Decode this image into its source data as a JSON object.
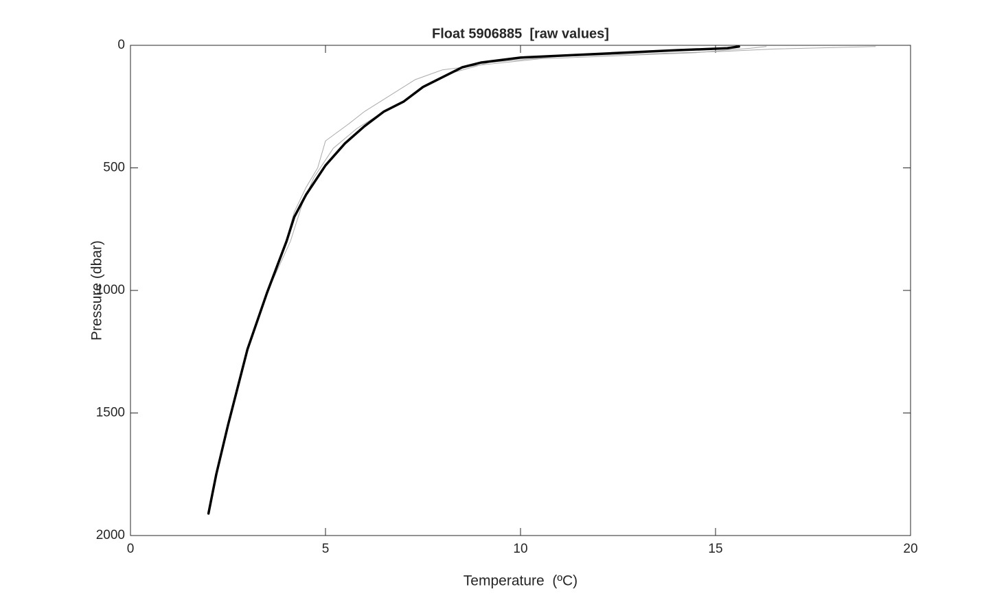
{
  "chart_data": {
    "type": "line",
    "title": "Float 5906885  [raw values]",
    "x_label": "Temperature  (ºC)",
    "y_label": "Pressure (dbar)",
    "xlim": [
      0,
      20
    ],
    "xticks": [
      0,
      5,
      10,
      15,
      20
    ],
    "ylim": [
      0,
      2000
    ],
    "yticks": [
      0,
      500,
      1000,
      1500,
      2000
    ],
    "y_inverted": true,
    "series": [
      {
        "color": "#aaaaaa",
        "width": 1,
        "x": [
          19.1,
          16.5,
          15.2,
          11,
          9.2,
          8.3,
          7.6,
          7.0,
          6.4,
          5.8,
          5.2,
          4.7,
          4.4,
          4.1,
          3.5,
          3.0,
          2.5,
          2.2,
          2.0
        ],
        "values": [
          5,
          15,
          25,
          45,
          70,
          110,
          160,
          230,
          280,
          340,
          420,
          540,
          650,
          800,
          1010,
          1250,
          1560,
          1750,
          1905
        ]
      },
      {
        "color": "#aaaaaa",
        "width": 1,
        "x": [
          16.3,
          15.9,
          14.5,
          10.5,
          9.0,
          8.0,
          7.3,
          6.0,
          5.6,
          5.0,
          4.8,
          4.5,
          4.2,
          4.0,
          3.5,
          3.0,
          2.5,
          2.2,
          2.0
        ],
        "values": [
          5,
          12,
          30,
          55,
          80,
          100,
          140,
          270,
          320,
          390,
          500,
          580,
          680,
          790,
          1000,
          1245,
          1550,
          1748,
          1908
        ]
      },
      {
        "color": "#000000",
        "width": 3.5,
        "x": [
          15.6,
          15.3,
          14,
          10,
          9,
          8.5,
          8,
          7.5,
          7,
          6.5,
          6,
          5.5,
          5,
          4.5,
          4.2,
          4,
          3.5,
          3,
          2.5,
          2.2,
          2
        ],
        "values": [
          5,
          12,
          20,
          50,
          70,
          90,
          130,
          170,
          230,
          270,
          330,
          400,
          490,
          610,
          700,
          800,
          1010,
          1240,
          1550,
          1750,
          1910
        ]
      }
    ]
  }
}
